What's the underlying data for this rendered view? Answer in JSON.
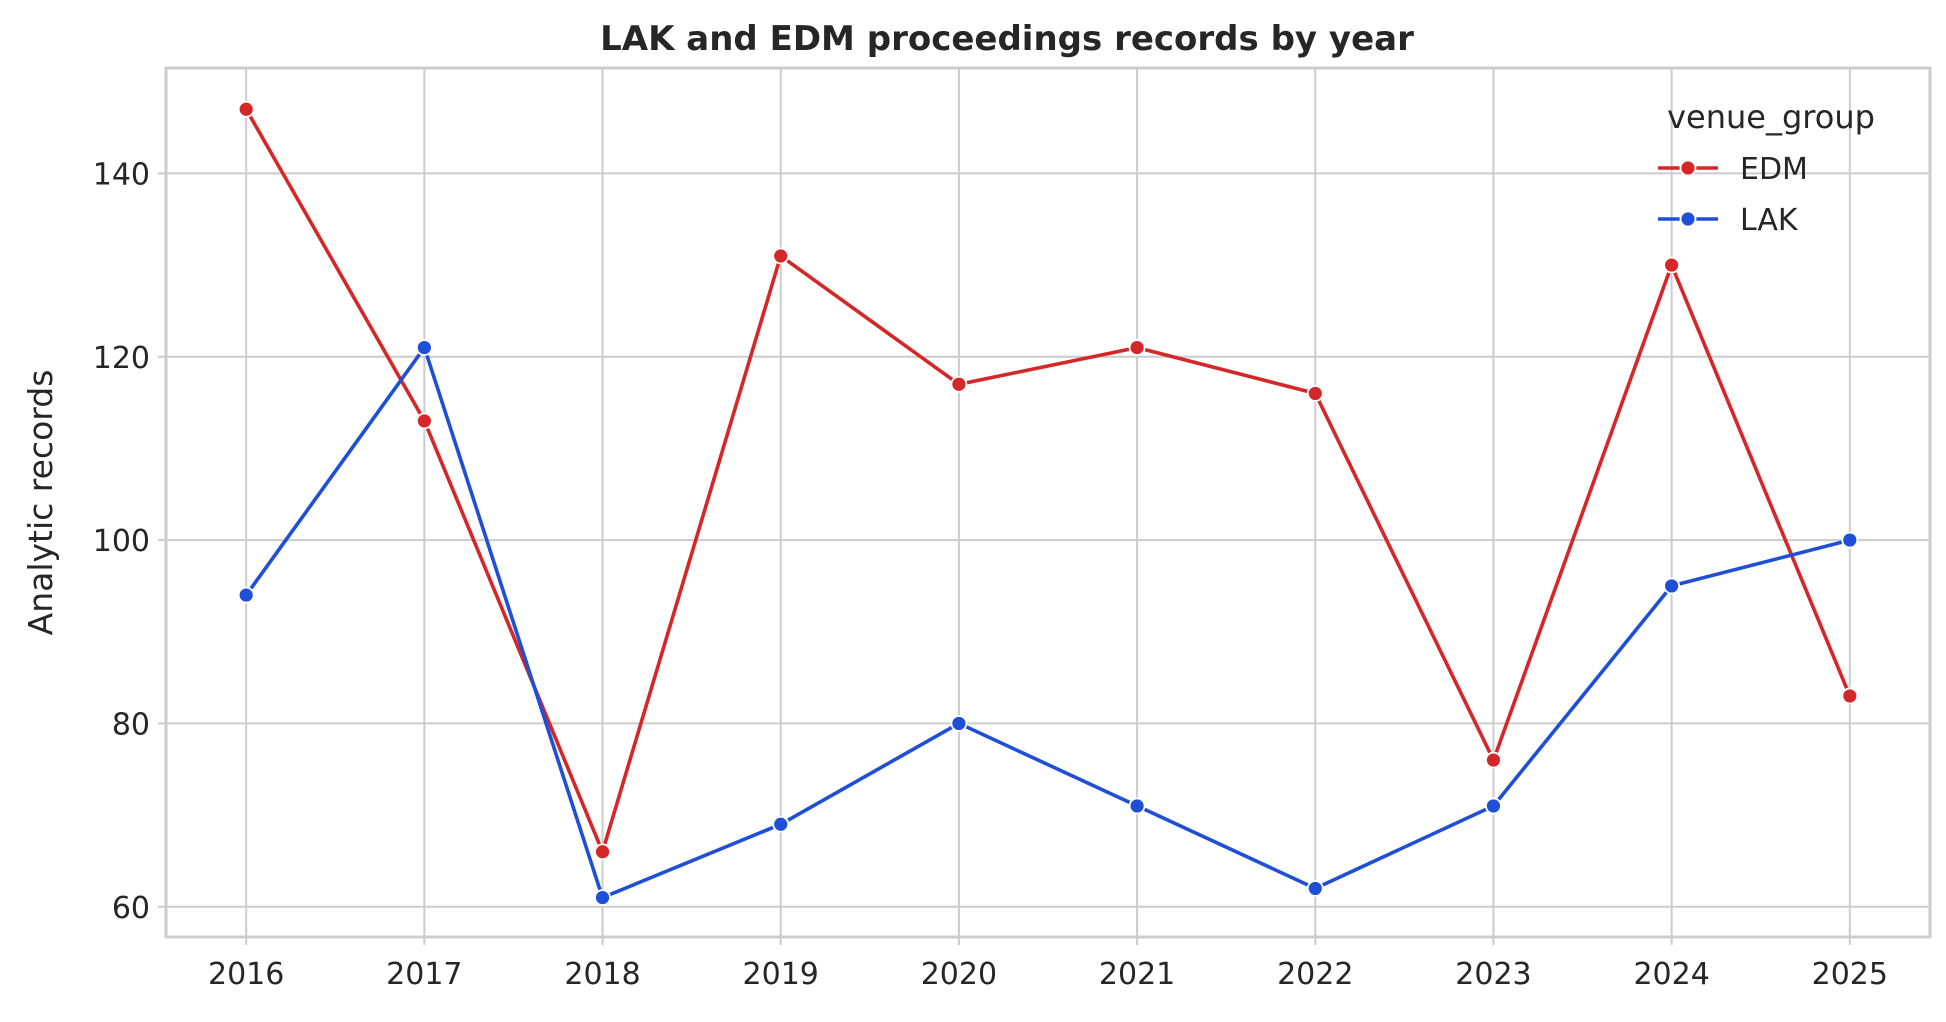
{
  "chart_data": {
    "type": "line",
    "title": "LAK and EDM proceedings records by year",
    "xlabel": "",
    "ylabel": "Analytic records",
    "x": [
      2016,
      2017,
      2018,
      2019,
      2020,
      2021,
      2022,
      2023,
      2024,
      2025
    ],
    "x_tick_labels": [
      "2016",
      "2017",
      "2018",
      "2019",
      "2020",
      "2021",
      "2022",
      "2023",
      "2024",
      "2025"
    ],
    "xlim": [
      2015.55,
      2025.45
    ],
    "y_ticks": [
      60,
      80,
      100,
      120,
      140
    ],
    "y_tick_labels": [
      "60",
      "80",
      "100",
      "120",
      "140"
    ],
    "ylim": [
      56.7,
      151.5
    ],
    "grid": true,
    "legend": {
      "title": "venue_group",
      "placement": "top-right"
    },
    "series": [
      {
        "name": "EDM",
        "color": "#d62728",
        "values": [
          147,
          113,
          66,
          131,
          117,
          121,
          116,
          76,
          130,
          83
        ]
      },
      {
        "name": "LAK",
        "color": "#1f4fd6",
        "values": [
          94,
          121,
          61,
          69,
          80,
          71,
          62,
          71,
          95,
          100
        ]
      }
    ]
  }
}
